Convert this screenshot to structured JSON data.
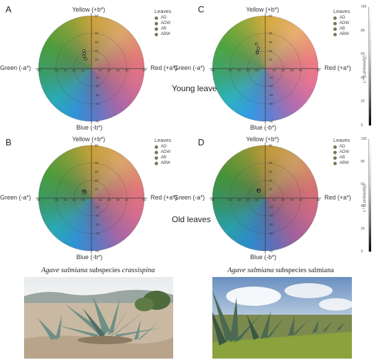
{
  "labels": {
    "top": "Yellow (+b*)",
    "bottom": "Blue (-b*)",
    "left": "Green (-a*)",
    "right": "Red (+a*)",
    "luminosity": "L* (Luminosity)"
  },
  "legend": {
    "title": "Leaves",
    "items": [
      "AD",
      "ADW",
      "AB",
      "ABW"
    ]
  },
  "row_labels": {
    "young": "Young leaves",
    "old": "Old leaves"
  },
  "captions": {
    "left_italic": "Agave salmiana",
    "left_plain": " subspecies ",
    "left_italic2": "crassispina",
    "right_italic": "Agave salmiana",
    "right_plain": " subspecies ",
    "right_plain2": "salmiana"
  },
  "chart_data": [
    {
      "panel": "A",
      "type": "scatter",
      "xlabel": "a*",
      "ylabel": "b*",
      "xlim": [
        -60,
        60
      ],
      "ylim": [
        -60,
        60
      ],
      "lightness": 0.52,
      "series": [
        {
          "name": "AD",
          "x": [
            -8.5
          ],
          "y": [
            20
          ]
        },
        {
          "name": "ADW",
          "x": [
            -8.0
          ],
          "y": [
            17
          ]
        },
        {
          "name": "AB",
          "x": [
            -8.5
          ],
          "y": [
            14
          ]
        },
        {
          "name": "ABW",
          "x": [
            -6.5
          ],
          "y": [
            11
          ]
        }
      ]
    },
    {
      "panel": "C",
      "type": "scatter",
      "xlabel": "a*",
      "ylabel": "b*",
      "xlim": [
        -60,
        60
      ],
      "ylim": [
        -60,
        60
      ],
      "lightness": 0.62,
      "series": [
        {
          "name": "AD",
          "x": [
            -10
          ],
          "y": [
            28
          ]
        },
        {
          "name": "ADW",
          "x": [
            -8
          ],
          "y": [
            23
          ]
        },
        {
          "name": "AB",
          "x": [
            -9
          ],
          "y": [
            19
          ]
        },
        {
          "name": "ABW",
          "x": [
            -9
          ],
          "y": [
            18
          ]
        }
      ]
    },
    {
      "panel": "B",
      "type": "scatter",
      "xlabel": "a*",
      "ylabel": "b*",
      "xlim": [
        -60,
        60
      ],
      "ylim": [
        -60,
        60
      ],
      "lightness": 0.5,
      "series": [
        {
          "name": "AD",
          "x": [
            -9
          ],
          "y": [
            8
          ]
        },
        {
          "name": "ADW",
          "x": [
            -8
          ],
          "y": [
            8
          ]
        },
        {
          "name": "AB",
          "x": [
            -7
          ],
          "y": [
            7
          ]
        },
        {
          "name": "ABW",
          "x": [
            -8
          ],
          "y": [
            6
          ]
        }
      ]
    },
    {
      "panel": "D",
      "type": "scatter",
      "xlabel": "a*",
      "ylabel": "b*",
      "xlim": [
        -60,
        60
      ],
      "ylim": [
        -60,
        60
      ],
      "lightness": 0.4,
      "series": [
        {
          "name": "AD",
          "x": [
            -8
          ],
          "y": [
            9
          ]
        },
        {
          "name": "ADW",
          "x": [
            -7
          ],
          "y": [
            9
          ]
        },
        {
          "name": "AB",
          "x": [
            -8
          ],
          "y": [
            8
          ]
        },
        {
          "name": "ABW",
          "x": [
            -7
          ],
          "y": [
            8
          ]
        }
      ]
    }
  ],
  "luminosity_scale": {
    "ticks": [
      "100",
      "80",
      "60",
      "40",
      "20",
      "0"
    ]
  },
  "colors": {
    "legend_dot": "#6f7d57",
    "marker_stroke": "#1e1e1e"
  }
}
